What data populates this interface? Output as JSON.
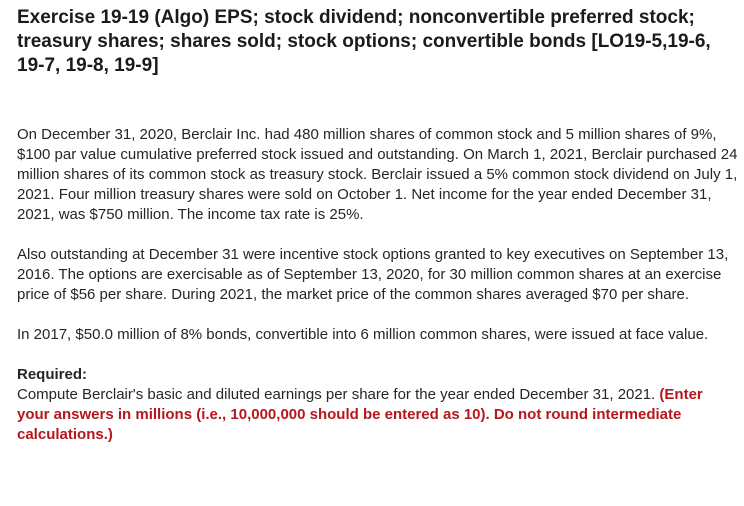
{
  "exercise": {
    "title": "Exercise 19-19 (Algo) EPS; stock dividend; nonconvertible preferred stock; treasury shares; shares sold; stock options; convertible bonds [LO19-5,19-6, 19-7, 19-8, 19-9]"
  },
  "paragraphs": {
    "p1": "On December 31, 2020, Berclair Inc. had 480 million shares of common stock and 5 million shares of 9%, $100 par value cumulative preferred stock issued and outstanding. On March 1, 2021, Berclair purchased 24 million shares of its common stock as treasury stock. Berclair issued a 5% common stock dividend on July 1, 2021. Four million treasury shares were sold on October 1. Net income for the year ended December 31, 2021, was $750 million. The income tax rate is 25%.",
    "p2": "Also outstanding at December 31 were incentive stock options granted to key executives on September 13, 2016. The options are exercisable as of September 13, 2020, for 30 million common shares at an exercise price of $56 per share. During 2021, the market price of the common shares averaged $70 per share.",
    "p3": "In 2017, $50.0 million of 8% bonds, convertible into 6 million common shares, were issued at face value."
  },
  "required": {
    "heading": "Required:",
    "text": "Compute Berclair's basic and diluted earnings per share for the year ended December 31, 2021.",
    "instruction": "(Enter your answers in millions (i.e., 10,000,000 should be entered as 10). Do not round intermediate calculations.)"
  },
  "colors": {
    "instruction": "#b5171d",
    "text": "#262626"
  }
}
